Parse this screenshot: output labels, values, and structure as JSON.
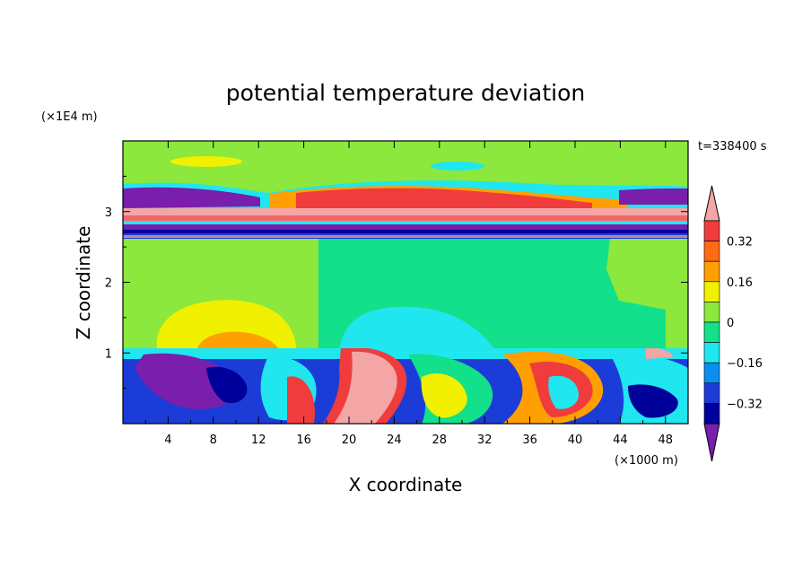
{
  "chart_data": {
    "type": "heatmap",
    "title": "potential temperature deviation",
    "xlabel": "X coordinate",
    "ylabel": "Z coordinate",
    "x_unit": "(×1000 m)",
    "y_unit": "(×1E4 m)",
    "time_label": "t=338400 s",
    "xlim": [
      0,
      50
    ],
    "ylim": [
      0,
      4
    ],
    "x_ticks": [
      "4",
      "8",
      "12",
      "16",
      "20",
      "24",
      "28",
      "32",
      "36",
      "40",
      "44",
      "48"
    ],
    "y_ticks": [
      "1",
      "2",
      "3"
    ],
    "colorbar": {
      "tick_labels": [
        "0.32",
        "0.16",
        "0",
        "-0.16",
        "-0.32"
      ],
      "levels": [
        {
          "range": "> 0.4",
          "color": "#f4a6a6"
        },
        {
          "range": "0.32 to 0.4",
          "color": "#f03c3c"
        },
        {
          "range": "0.24 to 0.32",
          "color": "#ff6a14"
        },
        {
          "range": "0.16 to 0.24",
          "color": "#ffa000"
        },
        {
          "range": "0.08 to 0.16",
          "color": "#f0f000"
        },
        {
          "range": "0 to 0.08",
          "color": "#8ce83c"
        },
        {
          "range": "-0.08 to 0",
          "color": "#12e08a"
        },
        {
          "range": "-0.16 to -0.08",
          "color": "#20e6f0"
        },
        {
          "range": "-0.24 to -0.16",
          "color": "#0a8ef0"
        },
        {
          "range": "-0.32 to -0.24",
          "color": "#1c3cd8"
        },
        {
          "range": "-0.4 to -0.32",
          "color": "#00009a"
        },
        {
          "range": "< -0.4",
          "color": "#7a1eac"
        }
      ]
    }
  }
}
